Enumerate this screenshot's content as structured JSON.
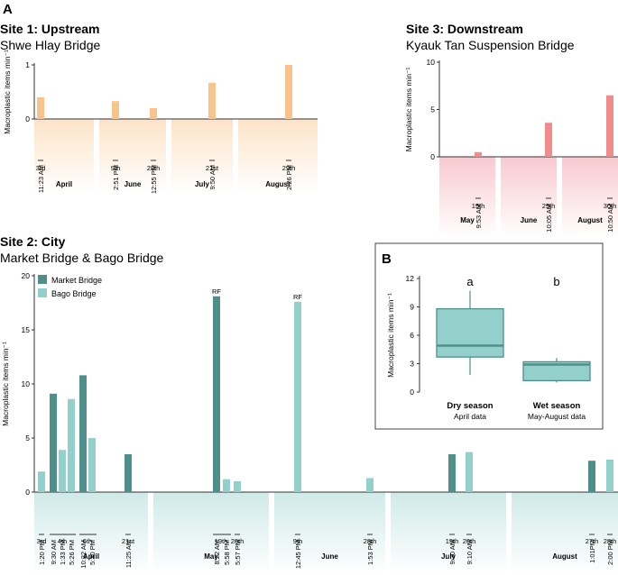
{
  "panel_labels": {
    "a": "A",
    "b": "B"
  },
  "site1": {
    "title": "Site 1: Upstream",
    "subtitle": "Shwe Hlay Bridge",
    "ylabel": "Macroplastic items min⁻¹",
    "yticks": [
      "0",
      "1"
    ]
  },
  "site3": {
    "title": "Site 3: Downstream",
    "subtitle": "Kyauk Tan Suspension Bridge",
    "ylabel": "Macroplastic items min⁻¹",
    "yticks": [
      "0",
      "5",
      "10"
    ]
  },
  "site2": {
    "title": "Site 2: City",
    "subtitle": "Market Bridge & Bago Bridge",
    "ylabel": "Macroplastic items min⁻¹",
    "yticks": [
      "0",
      "5",
      "10",
      "15",
      "20"
    ],
    "legend": [
      "Market Bridge",
      "Bago Bridge"
    ],
    "rf_label": "RF"
  },
  "panelB": {
    "ylabel": "Macroplastic items min⁻¹",
    "yticks": [
      "0",
      "3",
      "6",
      "9",
      "12"
    ],
    "groups": [
      {
        "name": "Dry season",
        "sub": "April data",
        "letter": "a"
      },
      {
        "name": "Wet season",
        "sub": "May-August data",
        "letter": "b"
      }
    ]
  },
  "colors": {
    "site1_bar": "#f9c48c",
    "site1_bg": "#fdebd9",
    "site3_bar": "#f28c8c",
    "site3_bg": "#fbd6da",
    "market": "#4e8f8a",
    "bago": "#93d0cc",
    "site2_bg": "#d8efee",
    "box_fill": "#93d0cc",
    "box_stroke": "#4e8f8a"
  },
  "chart_data": [
    {
      "type": "bar",
      "title": "Site 1: Upstream – Shwe Hlay Bridge",
      "ylabel": "Macroplastic items min⁻¹",
      "ylim": [
        0,
        1
      ],
      "months": [
        "April",
        "June",
        "July",
        "August"
      ],
      "bars": [
        {
          "month": "April",
          "day": "3rd",
          "time": "11:23 AM",
          "value": 0.4
        },
        {
          "month": "June",
          "day": "9th",
          "time": "2:51 PM",
          "value": 0.33
        },
        {
          "month": "June",
          "day": "28th",
          "time": "12:55 PM",
          "value": 0.2
        },
        {
          "month": "July",
          "day": "21st",
          "time": "9:50 AM",
          "value": 0.67
        },
        {
          "month": "August",
          "day": "29th",
          "time": "2:26 PM",
          "value": 1.0
        }
      ]
    },
    {
      "type": "bar",
      "title": "Site 3: Downstream – Kyauk Tan Suspension Bridge",
      "ylabel": "Macroplastic items min⁻¹",
      "ylim": [
        0,
        10
      ],
      "months": [
        "May",
        "June",
        "August"
      ],
      "bars": [
        {
          "month": "May",
          "day": "19th",
          "time": "9:53 AM",
          "value": 0.5
        },
        {
          "month": "June",
          "day": "29th",
          "time": "10:05 AM",
          "value": 3.6
        },
        {
          "month": "August",
          "day": "30th",
          "time": "10:50 AM",
          "value": 6.5
        }
      ]
    },
    {
      "type": "bar",
      "title": "Site 2: City – Market Bridge & Bago Bridge",
      "ylabel": "Macroplastic items min⁻¹",
      "ylim": [
        0,
        20
      ],
      "series_names": [
        "Market Bridge",
        "Bago Bridge"
      ],
      "months": [
        "April",
        "May",
        "June",
        "July",
        "August"
      ],
      "days": [
        {
          "label": "3rd",
          "month": "April",
          "bars": [
            {
              "series": "Bago Bridge",
              "time": "1:20 PM",
              "value": 1.9
            }
          ]
        },
        {
          "label": "4th",
          "month": "April",
          "bars": [
            {
              "series": "Market Bridge",
              "time": "9:30 AM",
              "value": 9.1
            },
            {
              "series": "Bago Bridge",
              "time": "1:33 PM",
              "value": 3.9
            },
            {
              "series": "Bago Bridge",
              "time": "5:26 PM",
              "value": 8.6
            }
          ]
        },
        {
          "label": "6th",
          "month": "April",
          "bars": [
            {
              "series": "Market Bridge",
              "time": "10:22 AM",
              "value": 10.8
            },
            {
              "series": "Bago Bridge",
              "time": "5:30 PM",
              "value": 5.0
            }
          ]
        },
        {
          "label": "21st",
          "month": "April",
          "bars": [
            {
              "series": "Market Bridge",
              "time": "11:25 AM",
              "value": 3.5
            }
          ]
        },
        {
          "label": "19th",
          "month": "May",
          "bars": [
            {
              "series": "Market Bridge",
              "time": "8:22 AM",
              "value": 18.1,
              "note": "RF"
            },
            {
              "series": "Bago Bridge",
              "time": "5:58 PM",
              "value": 1.2
            }
          ]
        },
        {
          "label": "20th",
          "month": "May",
          "bars": [
            {
              "series": "Bago Bridge",
              "time": "5:57 PM",
              "value": 1.0
            }
          ]
        },
        {
          "label": "9th",
          "month": "June",
          "bars": [
            {
              "series": "Bago Bridge",
              "time": "12:45 PM",
              "value": 17.6,
              "note": "RF"
            }
          ]
        },
        {
          "label": "28th",
          "month": "June",
          "bars": [
            {
              "series": "Bago Bridge",
              "time": "1:53 PM",
              "value": 1.3
            }
          ]
        },
        {
          "label": "19th",
          "month": "July",
          "bars": [
            {
              "series": "Market Bridge",
              "time": "9:30 AM",
              "value": 3.5
            }
          ]
        },
        {
          "label": "20th",
          "month": "July",
          "bars": [
            {
              "series": "Bago Bridge",
              "time": "9:10 AM",
              "value": 3.7
            }
          ]
        },
        {
          "label": "27th",
          "month": "August",
          "bars": [
            {
              "series": "Market Bridge",
              "time": "1:01PM",
              "value": 2.9
            }
          ]
        },
        {
          "label": "28th",
          "month": "August",
          "bars": [
            {
              "series": "Bago Bridge",
              "time": "2:00 PM",
              "value": 3.0
            }
          ]
        }
      ]
    },
    {
      "type": "box",
      "title": "Dry season vs Wet season",
      "ylabel": "Macroplastic items min⁻¹",
      "ylim": [
        0,
        12
      ],
      "categories": [
        "Dry season",
        "Wet season"
      ],
      "boxes": [
        {
          "name": "Dry season",
          "min": 1.8,
          "q1": 3.7,
          "median": 4.9,
          "q3": 8.8,
          "max": 10.7
        },
        {
          "name": "Wet season",
          "min": 1.0,
          "q1": 1.2,
          "median": 2.9,
          "q3": 3.2,
          "max": 3.6
        }
      ]
    }
  ]
}
